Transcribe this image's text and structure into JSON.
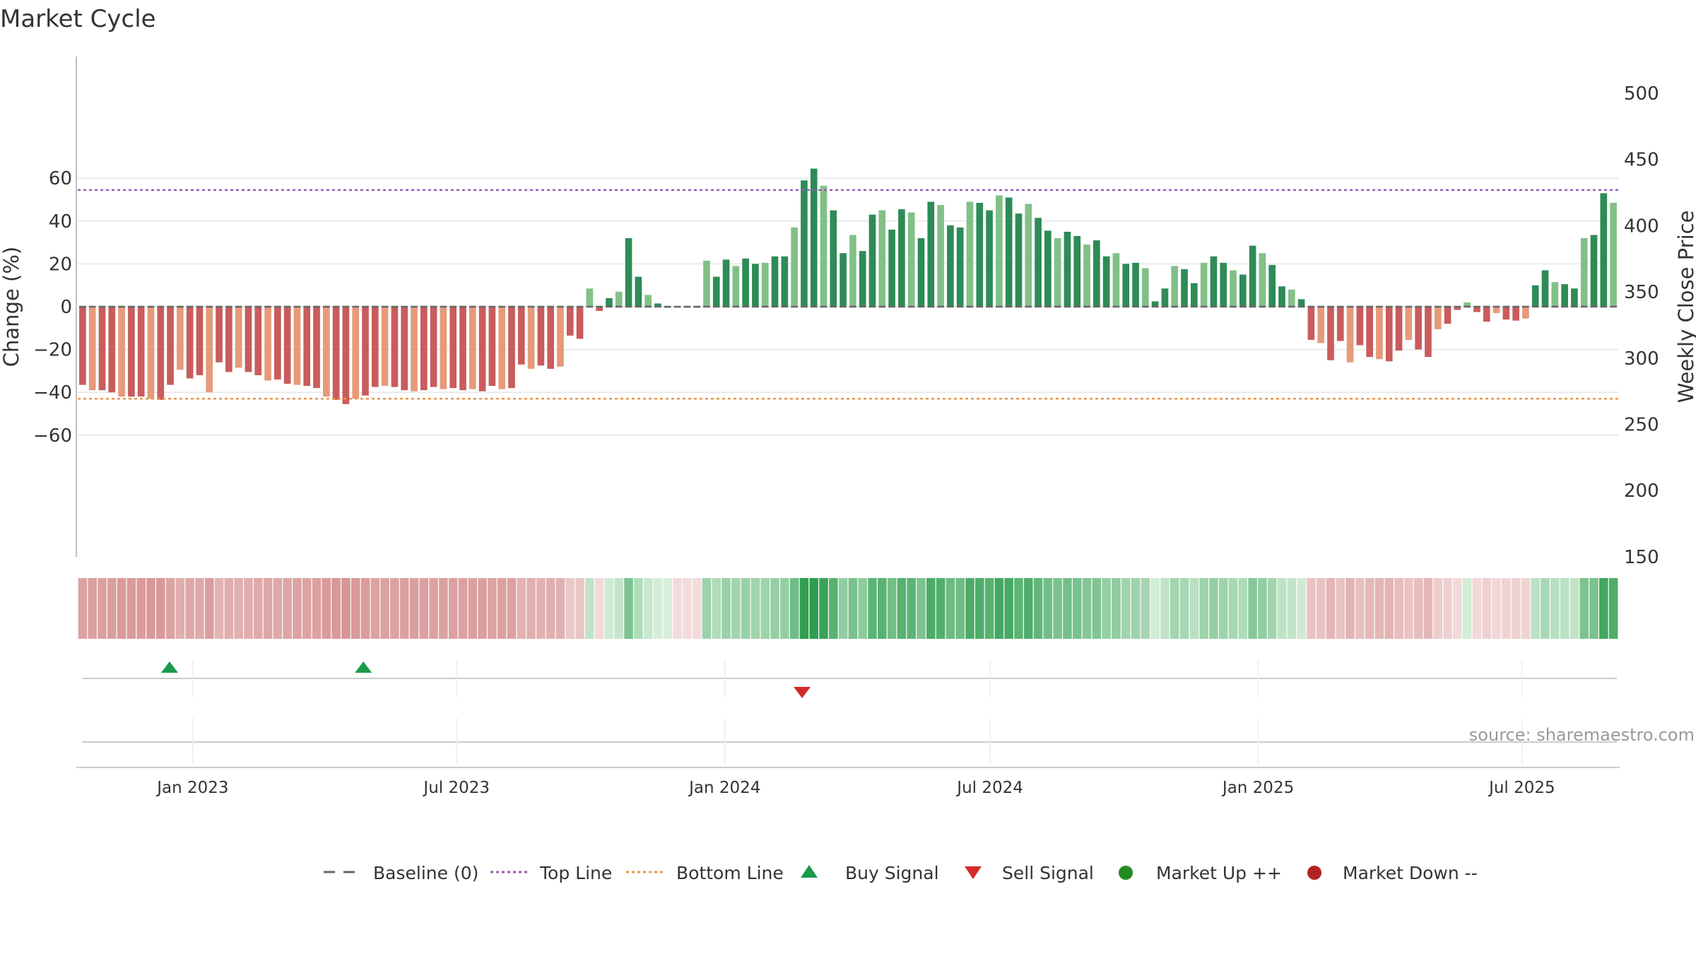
{
  "chart_data": {
    "type": "bar",
    "title": "Market Cycle",
    "ylabel": "Change (%)",
    "y2label": "Weekly Close Price",
    "ylim": [
      -70,
      70
    ],
    "yticks": [
      60,
      40,
      20,
      0,
      -20,
      -40,
      -60
    ],
    "y2ticks": [
      500,
      450,
      400,
      350,
      300,
      250,
      200,
      150
    ],
    "x_range": [
      "2022-10-14",
      "2025-09-05"
    ],
    "xticks": [
      {
        "date": "2023-01-01",
        "label": "Jan 2023"
      },
      {
        "date": "2023-07-01",
        "label": "Jul 2023"
      },
      {
        "date": "2024-01-01",
        "label": "Jan 2024"
      },
      {
        "date": "2024-07-01",
        "label": "Jul 2024"
      },
      {
        "date": "2025-01-01",
        "label": "Jan 2025"
      },
      {
        "date": "2025-07-01",
        "label": "Jul 2025"
      }
    ],
    "reference_lines": [
      {
        "name": "Top Line",
        "value": 54.5,
        "color": "#9b59b6"
      },
      {
        "name": "Bottom Line",
        "value": -43,
        "color": "#e8964d"
      }
    ],
    "series": [
      {
        "name": "Change (%)",
        "values": [
          -36.5,
          -39,
          -39,
          -40,
          -42,
          -42,
          -42,
          -43,
          -43.5,
          -36.5,
          -29.5,
          -33.5,
          -32,
          -40,
          -26,
          -30.5,
          -28.5,
          -30.5,
          -32,
          -34.5,
          -34,
          -36,
          -36.5,
          -37,
          -38,
          -42,
          -43.5,
          -45.5,
          -43,
          -41.5,
          -37.5,
          -37,
          -37.5,
          -39,
          -39.5,
          -39,
          -37.5,
          -38.5,
          -38,
          -39,
          -38.5,
          -39.5,
          -37,
          -38.5,
          -38,
          -27,
          -29,
          -27.5,
          -29,
          -28,
          -13.5,
          -15,
          8.5,
          -2,
          4,
          7,
          32,
          14,
          5.5,
          1.5,
          0,
          -0.5,
          -0.5,
          -0.5,
          21.5,
          14,
          22,
          19,
          22.5,
          20,
          20.5,
          23.5,
          23.5,
          37,
          59,
          64.5,
          56.5,
          45,
          25,
          33.5,
          26,
          43,
          45,
          36,
          45.5,
          44,
          32,
          49,
          47.5,
          38,
          37,
          49,
          48.5,
          45,
          52,
          51,
          43.5,
          48,
          41.5,
          35.5,
          32,
          35,
          33,
          29,
          31,
          23.5,
          25,
          20,
          20.5,
          18,
          2.5,
          8.5,
          19,
          17.5,
          11,
          20.5,
          23.5,
          20.5,
          17,
          15,
          28.5,
          25,
          19.5,
          9.5,
          8,
          3.5,
          -15.5,
          -17,
          -25,
          -16,
          -26,
          -18,
          -23.5,
          -24.5,
          -25.5,
          -20.5,
          -15.5,
          -20,
          -23.5,
          -10.5,
          -8,
          -1.5,
          2,
          -2.5,
          -7,
          -3,
          -6,
          -6.5,
          -5.5,
          10,
          17,
          11.5,
          10.5,
          8.5,
          32,
          33.5,
          53,
          48.5
        ]
      }
    ],
    "signals": {
      "buy": [
        "2022-12-16",
        "2023-04-28"
      ],
      "sell": [
        "2024-02-23"
      ]
    },
    "legend": {
      "position": "bottom",
      "items": [
        "Baseline (0)",
        "Top Line",
        "Bottom Line",
        "Buy Signal",
        "Sell Signal",
        "Market Up ++",
        "Market Down --"
      ]
    },
    "colors": {
      "up_strong": "#2e8b57",
      "up_light": "#82c087",
      "down_strong": "#c95c5c",
      "down_light": "#e69a7a",
      "buy": "#1a9a4a",
      "sell": "#d42a2a",
      "market_up": "#228b22",
      "market_down": "#b22222",
      "baseline": "#666666"
    },
    "source": "source: sharemaestro.com"
  }
}
